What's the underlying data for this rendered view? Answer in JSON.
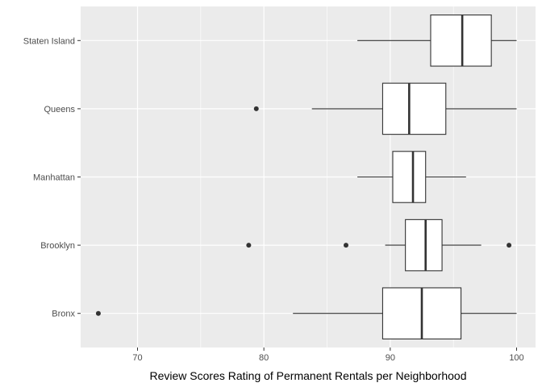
{
  "chart_data": {
    "type": "boxplot",
    "orientation": "horizontal",
    "title": "",
    "xlabel": "Review Scores Rating of Permanent Rentals per Neighborhood",
    "ylabel": "",
    "xlim": [
      65.5,
      101.5
    ],
    "x_ticks": [
      70,
      80,
      90,
      100
    ],
    "x_minor_ticks": [
      75,
      85,
      95
    ],
    "grid": true,
    "legend": "none",
    "colors": {
      "panel": "#ebebeb",
      "grid": "#ffffff",
      "box_fill": "#ffffff",
      "box_line": "#333333",
      "tick_text": "#4d4d4d",
      "title_text": "#000000"
    },
    "categories": [
      "Staten Island",
      "Queens",
      "Manhattan",
      "Brooklyn",
      "Bronx"
    ],
    "boxes": [
      {
        "category": "Staten Island",
        "whisker_low": 87.4,
        "q1": 93.2,
        "median": 95.7,
        "q3": 98.0,
        "whisker_high": 100,
        "outliers": []
      },
      {
        "category": "Queens",
        "whisker_low": 83.8,
        "q1": 89.4,
        "median": 91.5,
        "q3": 94.4,
        "whisker_high": 100,
        "outliers": [
          79.4
        ]
      },
      {
        "category": "Manhattan",
        "whisker_low": 87.4,
        "q1": 90.2,
        "median": 91.8,
        "q3": 92.8,
        "whisker_high": 96.0,
        "outliers": []
      },
      {
        "category": "Brooklyn",
        "whisker_low": 89.6,
        "q1": 91.2,
        "median": 92.8,
        "q3": 94.1,
        "whisker_high": 97.2,
        "outliers": [
          78.8,
          86.5,
          99.4
        ]
      },
      {
        "category": "Bronx",
        "whisker_low": 82.3,
        "q1": 89.4,
        "median": 92.5,
        "q3": 95.6,
        "whisker_high": 100,
        "outliers": [
          66.9
        ]
      }
    ]
  }
}
